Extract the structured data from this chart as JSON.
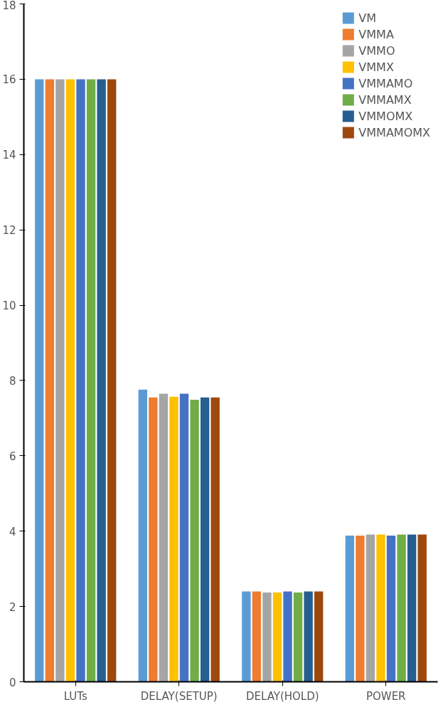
{
  "chart_data": {
    "type": "bar",
    "categories": [
      "LUTs",
      "DELAY(SETUP)",
      "DELAY(HOLD)",
      "POWER"
    ],
    "series": [
      {
        "name": "VM",
        "color": "#5b9bd5",
        "values": [
          16,
          7.76,
          2.4,
          3.88
        ]
      },
      {
        "name": "VMMA",
        "color": "#ed7d31",
        "values": [
          16,
          7.55,
          2.4,
          3.88
        ]
      },
      {
        "name": "VMMO",
        "color": "#a5a5a5",
        "values": [
          16,
          7.65,
          2.37,
          3.91
        ]
      },
      {
        "name": "VMMX",
        "color": "#ffc000",
        "values": [
          16,
          7.57,
          2.37,
          3.91
        ]
      },
      {
        "name": "VMMAMO",
        "color": "#4472c4",
        "values": [
          16,
          7.65,
          2.4,
          3.88
        ]
      },
      {
        "name": "VMMAMX",
        "color": "#70ad47",
        "values": [
          16,
          7.49,
          2.37,
          3.91
        ]
      },
      {
        "name": "VMMOMX",
        "color": "#255e91",
        "values": [
          16,
          7.55,
          2.4,
          3.91
        ]
      },
      {
        "name": "VMMAMOMX",
        "color": "#9e480e",
        "values": [
          16,
          7.55,
          2.4,
          3.91
        ]
      }
    ],
    "ylim": [
      0,
      18
    ],
    "yticks": [
      0,
      2,
      4,
      6,
      8,
      10,
      12,
      14,
      16,
      18
    ],
    "grid": false,
    "legend": "top right"
  }
}
